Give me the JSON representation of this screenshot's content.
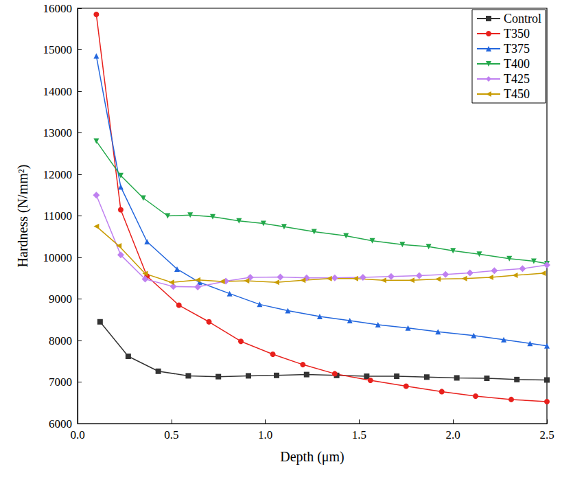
{
  "chart_data": {
    "type": "line",
    "x_label": "Depth (μm)",
    "y_label": "Hardness (N/mm²)",
    "xlim": [
      0,
      2.5
    ],
    "xticks": [
      {
        "value": 0,
        "label": "0.0"
      },
      0.5,
      {
        "value": 1,
        "label": "1.0"
      },
      1.5,
      {
        "value": 2,
        "label": "2.0"
      },
      2.5
    ],
    "ylim": [
      6000,
      16000
    ],
    "yticks": [
      6000,
      7000,
      8000,
      9000,
      10000,
      11000,
      12000,
      13000,
      14000,
      15000,
      16000
    ],
    "grid": false,
    "legend": "upper right",
    "series": [
      {
        "name": "Control",
        "color": "#333333",
        "marker": "square",
        "line_style": "solid",
        "x": [
          0.12,
          0.27,
          0.43,
          0.59,
          0.75,
          0.91,
          1.06,
          1.22,
          1.38,
          1.54,
          1.7,
          1.86,
          2.02,
          2.18,
          2.34,
          2.5
        ],
        "values": [
          8450,
          7620,
          7260,
          7150,
          7130,
          7150,
          7160,
          7180,
          7160,
          7140,
          7140,
          7120,
          7100,
          7090,
          7060,
          7050
        ]
      },
      {
        "name": "T350",
        "color": "#e8201c",
        "marker": "circle",
        "line_style": "solid",
        "x": [
          0.1,
          0.23,
          0.37,
          0.54,
          0.7,
          0.87,
          1.04,
          1.2,
          1.37,
          1.56,
          1.75,
          1.94,
          2.12,
          2.31,
          2.5
        ],
        "values": [
          15850,
          11150,
          9550,
          8850,
          8450,
          7980,
          7670,
          7420,
          7200,
          7040,
          6900,
          6770,
          6660,
          6580,
          6530
        ]
      },
      {
        "name": "T375",
        "color": "#2266dd",
        "marker": "triangle-up",
        "line_style": "solid",
        "x": [
          0.1,
          0.23,
          0.37,
          0.53,
          0.65,
          0.81,
          0.97,
          1.12,
          1.29,
          1.45,
          1.6,
          1.76,
          1.92,
          2.11,
          2.27,
          2.41,
          2.5
        ],
        "values": [
          14850,
          11700,
          10380,
          9720,
          9400,
          9130,
          8870,
          8720,
          8580,
          8480,
          8380,
          8300,
          8210,
          8120,
          8020,
          7930,
          7870
        ]
      },
      {
        "name": "T400",
        "color": "#22a84a",
        "marker": "triangle-down",
        "line_style": "solid",
        "x": [
          0.1,
          0.23,
          0.35,
          0.48,
          0.6,
          0.72,
          0.86,
          0.99,
          1.1,
          1.26,
          1.43,
          1.57,
          1.73,
          1.87,
          2.0,
          2.14,
          2.3,
          2.43,
          2.5
        ],
        "values": [
          12800,
          11970,
          11430,
          11000,
          11020,
          10980,
          10880,
          10820,
          10740,
          10620,
          10520,
          10400,
          10310,
          10260,
          10160,
          10080,
          9970,
          9910,
          9850
        ]
      },
      {
        "name": "T425",
        "color": "#bf80f0",
        "marker": "diamond",
        "line_style": "solid",
        "x": [
          0.1,
          0.23,
          0.36,
          0.51,
          0.64,
          0.79,
          0.92,
          1.08,
          1.22,
          1.37,
          1.52,
          1.67,
          1.82,
          1.96,
          2.09,
          2.22,
          2.37,
          2.5
        ],
        "values": [
          11500,
          10060,
          9480,
          9300,
          9290,
          9430,
          9520,
          9530,
          9510,
          9510,
          9520,
          9540,
          9560,
          9590,
          9630,
          9680,
          9730,
          9820
        ]
      },
      {
        "name": "T450",
        "color": "#c89b00",
        "marker": "triangle-left",
        "line_style": "solid",
        "x": [
          0.1,
          0.22,
          0.36,
          0.5,
          0.64,
          0.77,
          0.9,
          1.06,
          1.2,
          1.34,
          1.48,
          1.63,
          1.78,
          1.92,
          2.06,
          2.2,
          2.33,
          2.48
        ],
        "values": [
          10750,
          10280,
          9610,
          9400,
          9460,
          9420,
          9440,
          9400,
          9450,
          9490,
          9490,
          9450,
          9450,
          9480,
          9490,
          9520,
          9570,
          9620
        ]
      }
    ]
  }
}
